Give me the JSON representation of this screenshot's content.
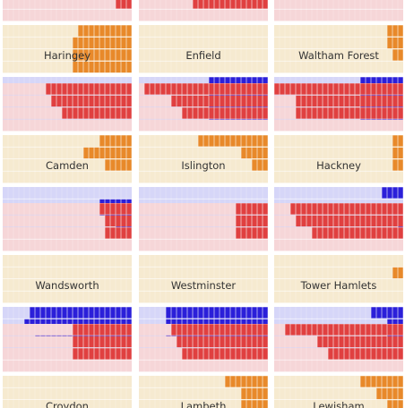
{
  "chart_data": {
    "type": "bar",
    "layout": "small-multiples grid of waffle bars, 3 columns, top row cropped at top edge and bottom row cropped at bottom edge",
    "blocks_per_bar": 24,
    "colors": {
      "red": "#e04040",
      "red_light": "#f6d6d8",
      "orange": "#e8892a",
      "orange_light": "#f6ead0",
      "blue": "#2b1fd9",
      "blue_light": "#d6d6f8",
      "divider": "#ffffff"
    },
    "row_pattern": [
      "red",
      "red",
      "red",
      "red",
      "orange",
      "orange",
      "orange",
      "orange",
      "blue",
      "blue",
      "blue",
      "blue"
    ],
    "panels": [
      {
        "name": "Haringey",
        "values": [
          null,
          null,
          3,
          0,
          10,
          11,
          11,
          11,
          0,
          0,
          0,
          0
        ]
      },
      {
        "name": "Enfield",
        "values": [
          null,
          null,
          14,
          0,
          0,
          0,
          0,
          0,
          11,
          11,
          11,
          11
        ]
      },
      {
        "name": "Waltham Forest",
        "values": [
          null,
          null,
          0,
          0,
          3,
          3,
          2,
          0,
          8,
          8,
          8,
          8
        ]
      },
      {
        "name": "Camden",
        "values": [
          16,
          15,
          13,
          0,
          6,
          9,
          5,
          0,
          0,
          6,
          6,
          3
        ]
      },
      {
        "name": "Islington",
        "values": [
          23,
          18,
          16,
          0,
          13,
          5,
          3,
          0,
          0,
          0,
          0,
          0
        ]
      },
      {
        "name": "Hackney",
        "values": [
          24,
          20,
          20,
          0,
          2,
          2,
          2,
          0,
          4,
          0,
          0,
          1
        ]
      },
      {
        "name": "Wandsworth",
        "values": [
          6,
          5,
          5,
          0,
          0,
          0,
          0,
          0,
          19,
          20,
          18,
          0
        ]
      },
      {
        "name": "Westminster",
        "values": [
          6,
          6,
          6,
          0,
          0,
          0,
          0,
          0,
          19,
          19,
          19,
          0
        ]
      },
      {
        "name": "Tower Hamlets",
        "values": [
          21,
          20,
          17,
          0,
          0,
          2,
          0,
          0,
          6,
          3,
          3,
          0
        ]
      },
      {
        "name": "Croydon",
        "values": [
          11,
          11,
          11,
          0,
          0,
          0,
          0,
          0,
          13,
          null,
          null,
          null
        ]
      },
      {
        "name": "Lambeth",
        "values": [
          18,
          17,
          16,
          0,
          8,
          5,
          5,
          0,
          1,
          null,
          null,
          null
        ]
      },
      {
        "name": "Lewisham",
        "values": [
          22,
          16,
          14,
          0,
          8,
          5,
          3,
          0,
          1,
          null,
          null,
          null
        ]
      }
    ]
  }
}
